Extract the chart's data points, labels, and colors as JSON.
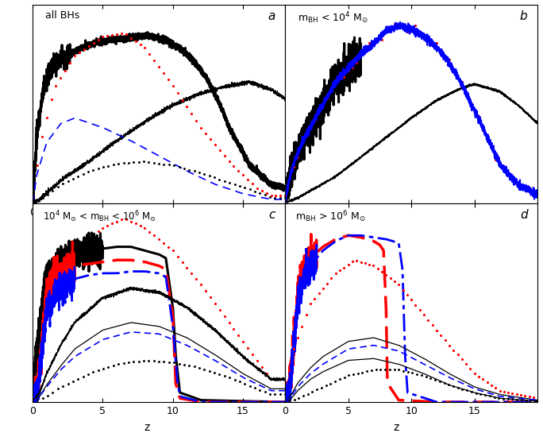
{
  "figsize": [
    6.84,
    5.5
  ],
  "dpi": 100,
  "panels": [
    {
      "label": "a",
      "text": "all BHs",
      "xlim": [
        0,
        18
      ],
      "xticks": [
        0,
        5,
        10,
        15
      ]
    },
    {
      "label": "b",
      "text": "m$_{\\mathrm{BH}}$ < 10$^4$ M$_{\\odot}$",
      "xlim": [
        0,
        20
      ],
      "xticks": [
        0,
        5,
        10,
        15
      ]
    },
    {
      "label": "c",
      "text": "10$^4$ M$_{\\odot}$ < m$_{\\mathrm{BH}}$ < 10$^6$ M$_{\\odot}$",
      "xlim": [
        0,
        18
      ],
      "xticks": [
        0,
        5,
        10,
        15
      ]
    },
    {
      "label": "d",
      "text": "m$_{\\mathrm{BH}}$ > 10$^6$ M$_{\\odot}$",
      "xlim": [
        0,
        20
      ],
      "xticks": [
        0,
        5,
        10,
        15
      ]
    }
  ]
}
